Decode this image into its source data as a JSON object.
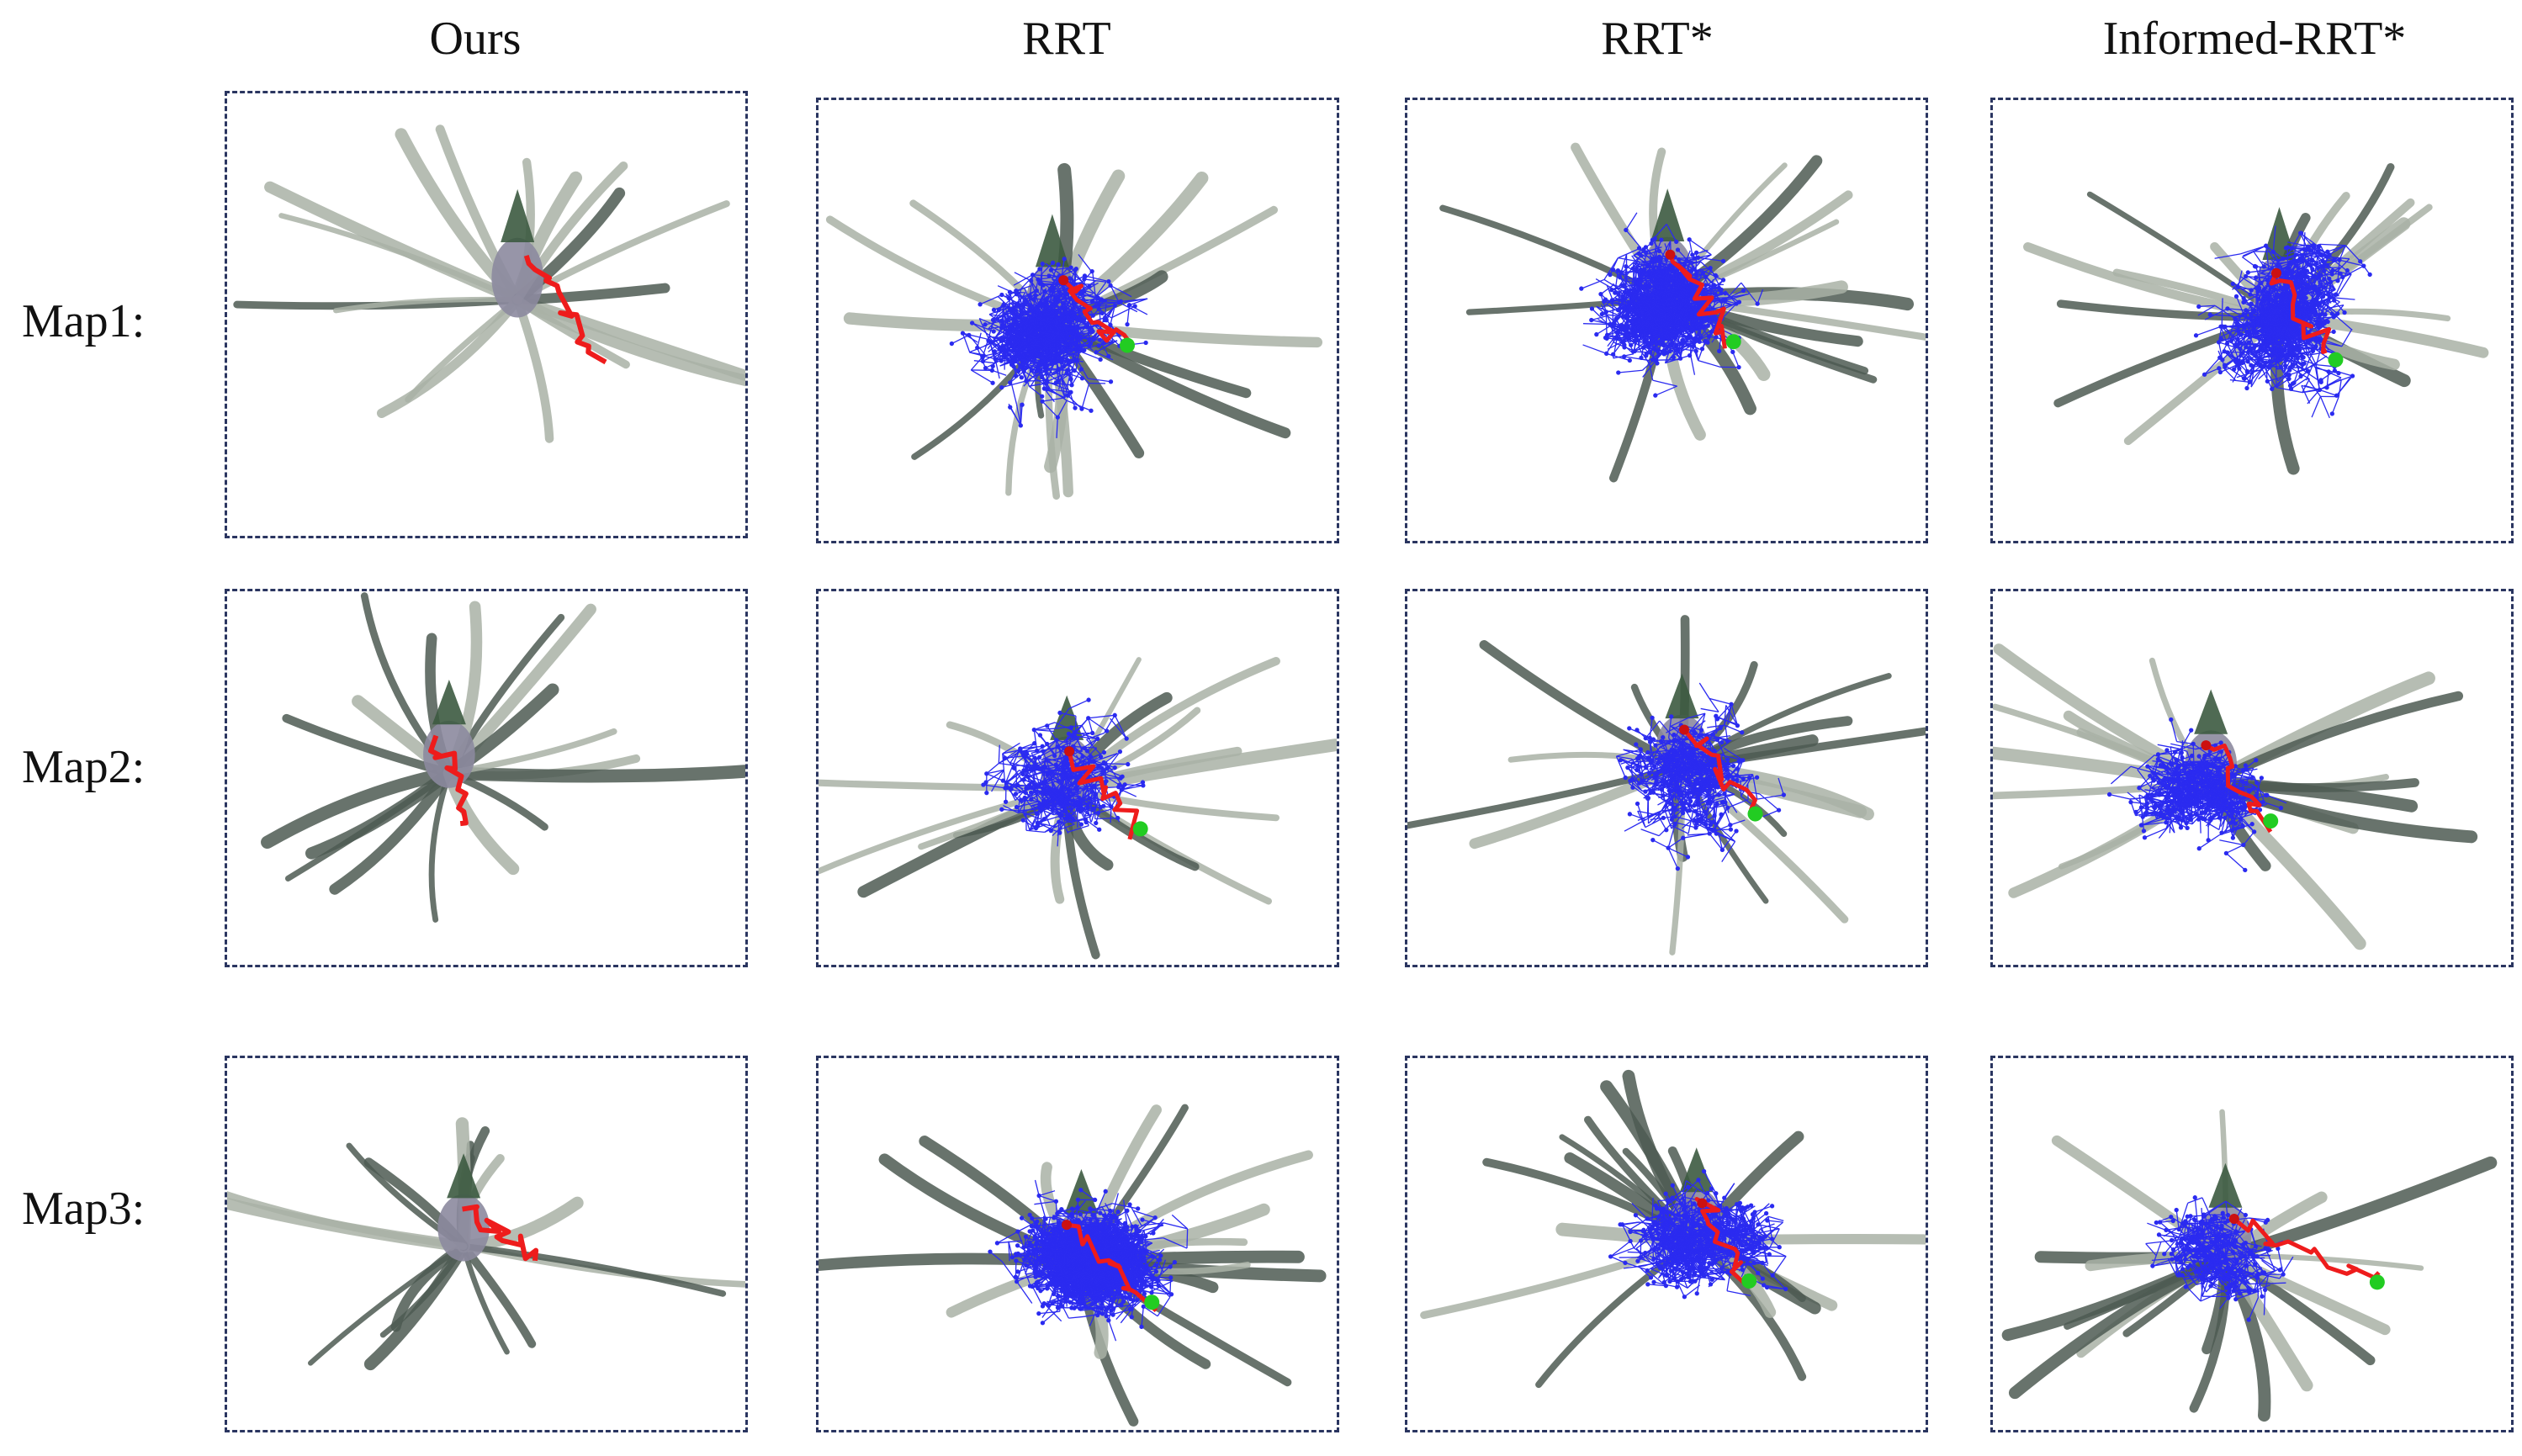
{
  "columns": [
    {
      "id": "ours",
      "label": "Ours"
    },
    {
      "id": "rrt",
      "label": "RRT"
    },
    {
      "id": "rrtstar",
      "label": "RRT*"
    },
    {
      "id": "informed",
      "label": "Informed-RRT*"
    }
  ],
  "rows": [
    {
      "id": "map1",
      "label": "Map1:"
    },
    {
      "id": "map2",
      "label": "Map2:"
    },
    {
      "id": "map3",
      "label": "Map3:"
    }
  ],
  "colors": {
    "tree": "#2b2bf0",
    "path": "#ee1c1c",
    "goal": "#22cc22",
    "start": "#cc1111",
    "border": "#2a3560",
    "foliage_dark": "#4e5a52",
    "foliage_light": "#a9b1a6",
    "fruit": "#8c8a9e"
  }
}
